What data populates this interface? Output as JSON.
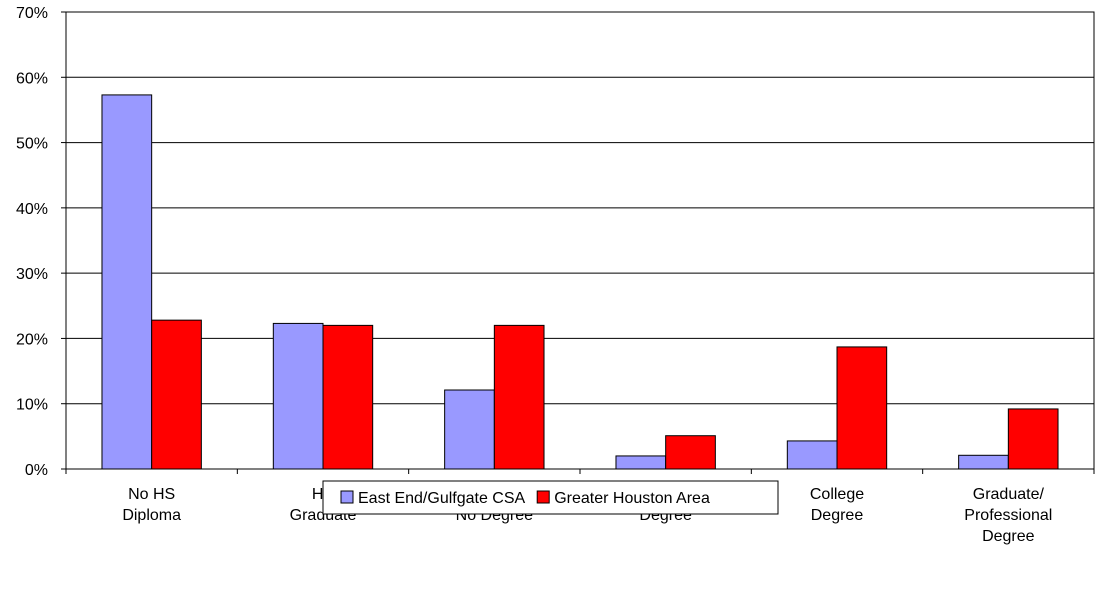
{
  "chart_data": {
    "type": "bar",
    "categories": [
      "No HS\nDiploma",
      "HS\nGraduate",
      "College,\nNo Degree",
      "Associate\nDegree",
      "College\nDegree",
      "Graduate/\nProfessional\nDegree"
    ],
    "series": [
      {
        "name": "East End/Gulfgate CSA",
        "color": "#9999ff",
        "values": [
          57.3,
          22.3,
          12.1,
          2.0,
          4.3,
          2.1
        ]
      },
      {
        "name": "Greater Houston Area",
        "color": "#ff0000",
        "values": [
          22.8,
          22.0,
          22.0,
          5.1,
          18.7,
          9.2
        ]
      }
    ],
    "ylim": [
      0,
      70
    ],
    "yticks": [
      {
        "value": 0,
        "label": "0%"
      },
      {
        "value": 10,
        "label": "10%"
      },
      {
        "value": 20,
        "label": "20%"
      },
      {
        "value": 30,
        "label": "30%"
      },
      {
        "value": 40,
        "label": "40%"
      },
      {
        "value": 50,
        "label": "50%"
      },
      {
        "value": 60,
        "label": "60%"
      },
      {
        "value": 70,
        "label": "70%"
      }
    ],
    "grid": true,
    "legend": "bottom"
  }
}
